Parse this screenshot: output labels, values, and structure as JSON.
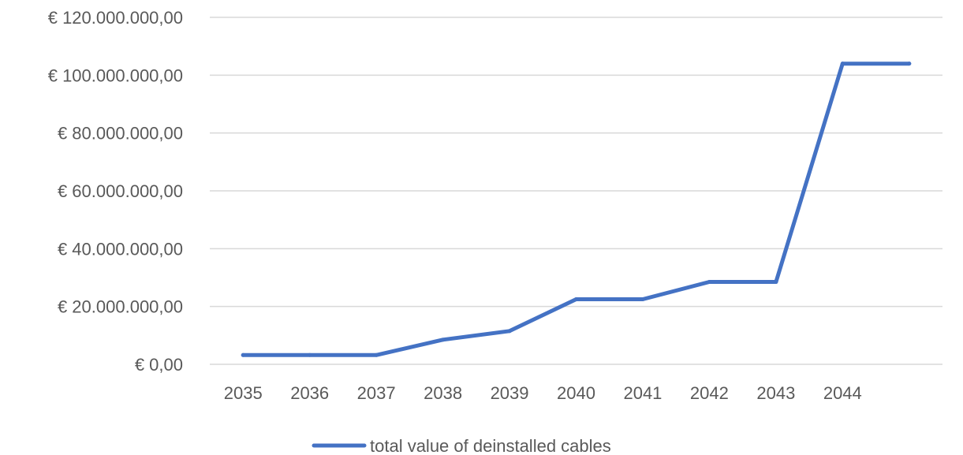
{
  "chart_data": {
    "type": "line",
    "title": "",
    "xlabel": "",
    "ylabel": "",
    "categories": [
      "2035",
      "2036",
      "2037",
      "2038",
      "2039",
      "2040",
      "2041",
      "2042",
      "2043",
      "2044",
      ""
    ],
    "series": [
      {
        "name": "total value of deinstalled cables",
        "color": "#4472c4",
        "values": [
          3200000,
          3200000,
          3200000,
          8500000,
          11500000,
          22500000,
          22500000,
          28500000,
          28500000,
          104000000,
          104000000
        ]
      }
    ],
    "ylim": [
      0,
      120000000
    ],
    "y_ticks": [
      0,
      20000000,
      40000000,
      60000000,
      80000000,
      100000000,
      120000000
    ],
    "y_tick_labels": [
      "€ 0,00",
      "€ 20.000.000,00",
      "€ 40.000.000,00",
      "€ 60.000.000,00",
      "€ 80.000.000,00",
      "€ 100.000.000,00",
      "€ 120.000.000,00"
    ],
    "grid": true,
    "legend": "bottom",
    "gridline_color": "#d9d9d9",
    "text_color": "#595959"
  }
}
